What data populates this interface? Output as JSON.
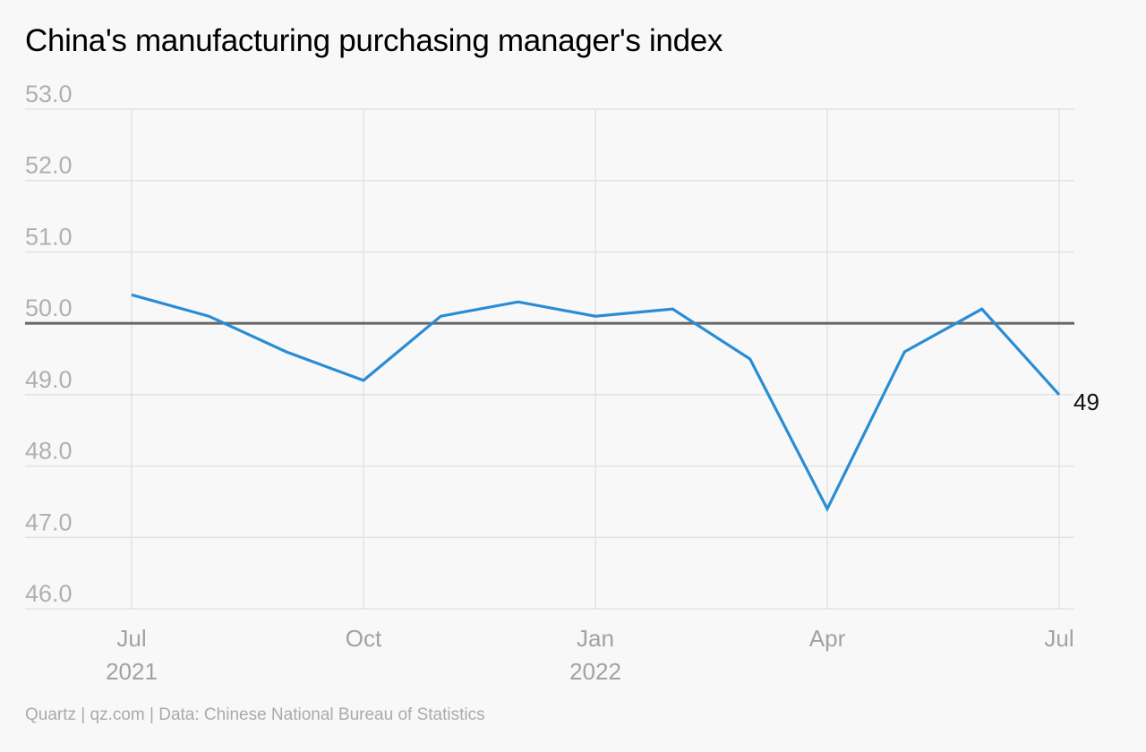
{
  "title": "China's manufacturing purchasing manager's index",
  "source": "Quartz | qz.com | Data: Chinese National Bureau of Statistics",
  "colors": {
    "line": "#2a8dd4",
    "reference_line": "#666666",
    "grid": "#e2e2e2",
    "background": "#f8f8f8"
  },
  "chart_data": {
    "type": "line",
    "title": "China's manufacturing purchasing manager's index",
    "xlabel": "",
    "ylabel": "",
    "x": [
      "2021-07",
      "2021-08",
      "2021-09",
      "2021-10",
      "2021-11",
      "2021-12",
      "2022-01",
      "2022-02",
      "2022-03",
      "2022-04",
      "2022-05",
      "2022-06",
      "2022-07"
    ],
    "series": [
      {
        "name": "",
        "values": [
          50.4,
          50.1,
          49.6,
          49.2,
          50.1,
          50.3,
          50.1,
          50.2,
          49.5,
          47.4,
          49.6,
          50.2,
          49.0
        ]
      }
    ],
    "ylim": [
      46.0,
      53.0
    ],
    "y_ticks": [
      "53.0",
      "52.0",
      "51.0",
      "50.0",
      "49.0",
      "48.0",
      "47.0",
      "46.0"
    ],
    "x_ticks": [
      {
        "month": "Jul",
        "year": "2021"
      },
      {
        "month": "Oct",
        "year": ""
      },
      {
        "month": "Jan",
        "year": "2022"
      },
      {
        "month": "Apr",
        "year": ""
      },
      {
        "month": "Jul",
        "year": ""
      }
    ],
    "reference_line": 50.0,
    "end_label": "49",
    "grid": true
  }
}
